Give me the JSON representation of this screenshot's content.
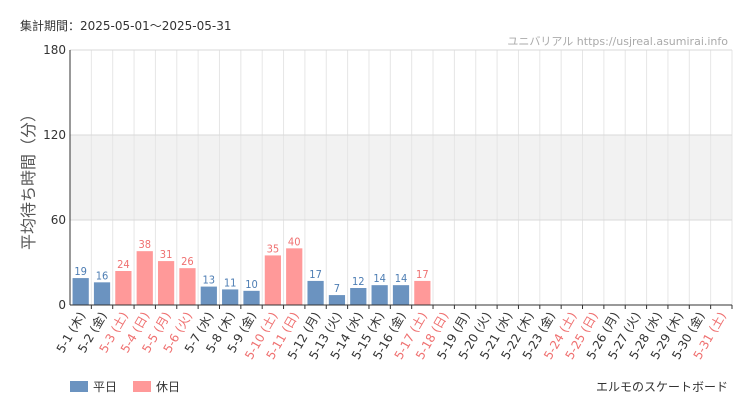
{
  "period": "集計期間：2025-05-01～2025-05-31",
  "credit": "ユニバリアル https://usjreal.asumirai.info",
  "footer_title": "エルモのスケートボード",
  "colors": {
    "weekday": "#6b93c0",
    "holiday": "#ff9999",
    "weekday_text": "#4d7db3",
    "holiday_text": "#ef7070",
    "band": "#f2f2f2",
    "grid": "#e6e6e6"
  },
  "chart_data": {
    "type": "bar",
    "ylabel": "平均待ち時間（分）",
    "ylim": [
      0,
      180
    ],
    "yticks": [
      0,
      60,
      120,
      180
    ],
    "grid": true,
    "legend_position": "bottom-left",
    "legend": [
      {
        "key": "weekday",
        "label": "平日"
      },
      {
        "key": "holiday",
        "label": "休日"
      }
    ],
    "categories": [
      "5-1 (木)",
      "5-2 (金)",
      "5-3 (土)",
      "5-4 (日)",
      "5-5 (月)",
      "5-6 (火)",
      "5-7 (水)",
      "5-8 (木)",
      "5-9 (金)",
      "5-10 (土)",
      "5-11 (日)",
      "5-12 (月)",
      "5-13 (火)",
      "5-14 (水)",
      "5-15 (木)",
      "5-16 (金)",
      "5-17 (土)",
      "5-18 (日)",
      "5-19 (月)",
      "5-20 (火)",
      "5-21 (水)",
      "5-22 (木)",
      "5-23 (金)",
      "5-24 (土)",
      "5-25 (日)",
      "5-26 (月)",
      "5-27 (火)",
      "5-28 (水)",
      "5-29 (木)",
      "5-30 (金)",
      "5-31 (土)"
    ],
    "day_types": [
      "weekday",
      "weekday",
      "holiday",
      "holiday",
      "holiday",
      "holiday",
      "weekday",
      "weekday",
      "weekday",
      "holiday",
      "holiday",
      "weekday",
      "weekday",
      "weekday",
      "weekday",
      "weekday",
      "holiday",
      "holiday",
      "weekday",
      "weekday",
      "weekday",
      "weekday",
      "weekday",
      "holiday",
      "holiday",
      "weekday",
      "weekday",
      "weekday",
      "weekday",
      "weekday",
      "holiday"
    ],
    "values": [
      19,
      16,
      24,
      38,
      31,
      26,
      13,
      11,
      10,
      35,
      40,
      17,
      7,
      12,
      14,
      14,
      17,
      null,
      null,
      null,
      null,
      null,
      null,
      null,
      null,
      null,
      null,
      null,
      null,
      null,
      null
    ]
  }
}
